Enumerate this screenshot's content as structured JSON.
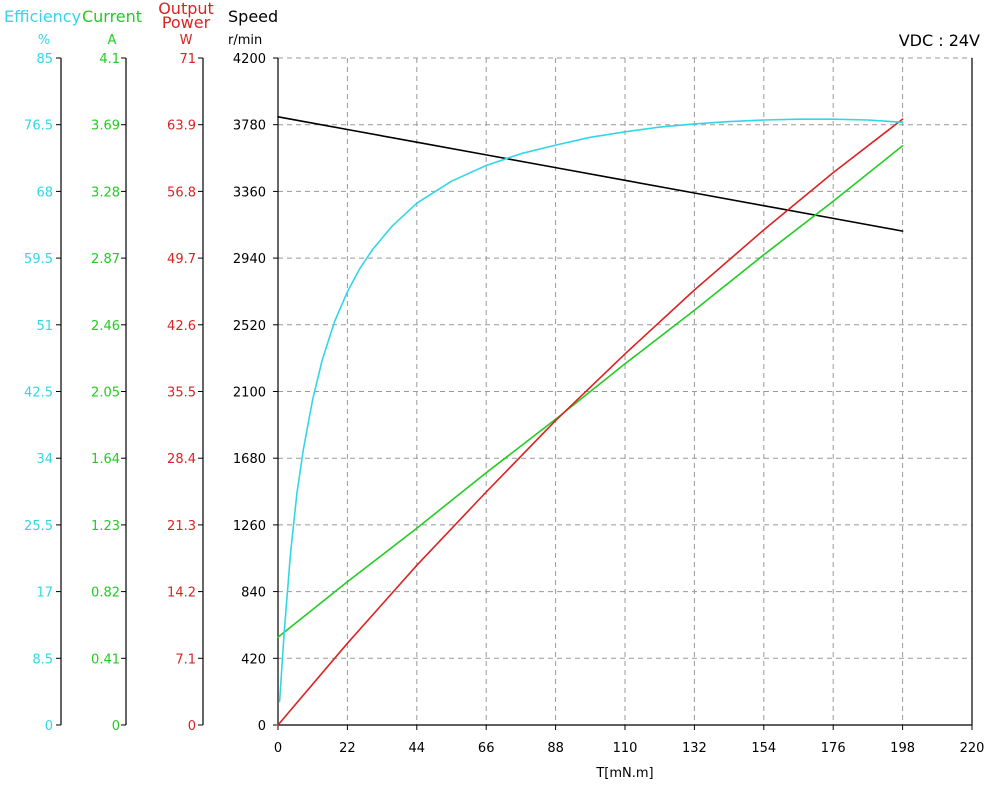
{
  "chart_data": {
    "type": "line",
    "annotation": "VDC : 24V",
    "x_axis": {
      "label": "T[mN.m]",
      "range": [
        0,
        220
      ],
      "ticks": [
        "0",
        "22",
        "44",
        "66",
        "88",
        "110",
        "132",
        "154",
        "176",
        "198",
        "220"
      ]
    },
    "y_axes": [
      {
        "key": "efficiency",
        "title": "Efficiency",
        "unit": "%",
        "color": "#33d6e6",
        "range": [
          0,
          85
        ],
        "ticks": [
          "0",
          "8.5",
          "17",
          "25.5",
          "34",
          "42.5",
          "51",
          "59.5",
          "68",
          "76.5",
          "85"
        ]
      },
      {
        "key": "current",
        "title": "Current",
        "unit": "A",
        "color": "#22cc22",
        "range": [
          0,
          4.1
        ],
        "ticks": [
          "0",
          "0.41",
          "0.82",
          "1.23",
          "1.64",
          "2.05",
          "2.46",
          "2.87",
          "3.28",
          "3.69",
          "4.1"
        ]
      },
      {
        "key": "power",
        "title": "Output Power",
        "title_lines": [
          "Output",
          "Power"
        ],
        "unit": "W",
        "color": "#dd2222",
        "range": [
          0,
          71
        ],
        "ticks": [
          "0",
          "7.1",
          "14.2",
          "21.3",
          "28.4",
          "35.5",
          "42.6",
          "49.7",
          "56.8",
          "63.9",
          "71"
        ]
      },
      {
        "key": "speed",
        "title": "Speed",
        "unit": "r/min",
        "color": "#000000",
        "range": [
          0,
          4200
        ],
        "ticks": [
          "0",
          "420",
          "840",
          "1260",
          "1680",
          "2100",
          "2520",
          "2940",
          "3360",
          "3780",
          "4200"
        ]
      }
    ],
    "grid": true,
    "series": [
      {
        "axis": "speed",
        "color": "#000000",
        "x": [
          0,
          22,
          44,
          66,
          88,
          110,
          132,
          154,
          176,
          198
        ],
        "y": [
          3830,
          3750,
          3670,
          3590,
          3510,
          3430,
          3350,
          3270,
          3190,
          3110
        ]
      },
      {
        "axis": "current",
        "color": "#22cc22",
        "x": [
          0,
          22,
          44,
          66,
          88,
          110,
          132,
          154,
          176,
          198
        ],
        "y": [
          0.54,
          0.88,
          1.21,
          1.55,
          1.88,
          2.22,
          2.55,
          2.89,
          3.22,
          3.56
        ]
      },
      {
        "axis": "power",
        "color": "#dd2222",
        "x": [
          0,
          22,
          44,
          66,
          88,
          110,
          132,
          154,
          176,
          198
        ],
        "y": [
          0,
          8.7,
          17.0,
          24.8,
          32.4,
          39.5,
          46.3,
          52.7,
          58.8,
          64.5
        ]
      },
      {
        "axis": "efficiency",
        "color": "#33d6e6",
        "x": [
          0.5,
          2,
          4,
          6,
          8,
          11,
          14,
          18,
          22,
          26,
          30,
          36,
          44,
          55,
          66,
          77,
          88,
          99,
          110,
          121,
          132,
          143,
          154,
          165,
          176,
          187,
          198
        ],
        "y": [
          3,
          12,
          22,
          29.5,
          35,
          41.5,
          46.5,
          51.5,
          55.2,
          58.2,
          60.6,
          63.5,
          66.5,
          69.3,
          71.3,
          72.8,
          73.9,
          74.9,
          75.6,
          76.2,
          76.6,
          76.9,
          77.1,
          77.2,
          77.2,
          77.1,
          76.8
        ]
      }
    ]
  }
}
